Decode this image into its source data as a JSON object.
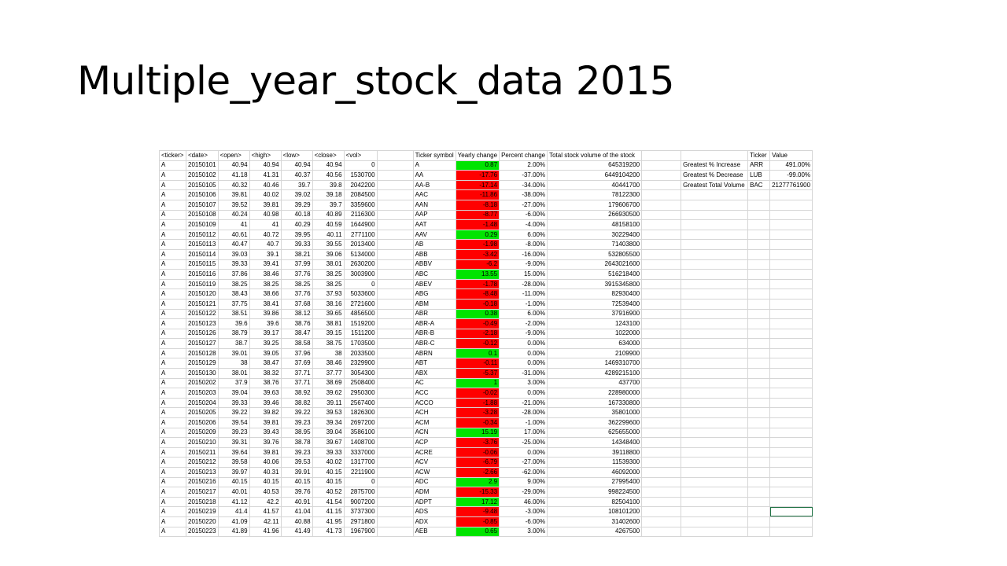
{
  "slide": {
    "title": "Multiple_year_stock_data 2015"
  },
  "sheet": {
    "raw_headers": [
      "<ticker>",
      "<date>",
      "<open>",
      "<high>",
      "<low>",
      "<close>",
      "<vol>"
    ],
    "raw_rows": [
      [
        "A",
        "20150101",
        "40.94",
        "40.94",
        "40.94",
        "40.94",
        "0"
      ],
      [
        "A",
        "20150102",
        "41.18",
        "41.31",
        "40.37",
        "40.56",
        "1530700"
      ],
      [
        "A",
        "20150105",
        "40.32",
        "40.46",
        "39.7",
        "39.8",
        "2042200"
      ],
      [
        "A",
        "20150106",
        "39.81",
        "40.02",
        "39.02",
        "39.18",
        "2084500"
      ],
      [
        "A",
        "20150107",
        "39.52",
        "39.81",
        "39.29",
        "39.7",
        "3359600"
      ],
      [
        "A",
        "20150108",
        "40.24",
        "40.98",
        "40.18",
        "40.89",
        "2116300"
      ],
      [
        "A",
        "20150109",
        "41",
        "41",
        "40.29",
        "40.59",
        "1644900"
      ],
      [
        "A",
        "20150112",
        "40.61",
        "40.72",
        "39.95",
        "40.11",
        "2771100"
      ],
      [
        "A",
        "20150113",
        "40.47",
        "40.7",
        "39.33",
        "39.55",
        "2013400"
      ],
      [
        "A",
        "20150114",
        "39.03",
        "39.1",
        "38.21",
        "39.06",
        "5134000"
      ],
      [
        "A",
        "20150115",
        "39.33",
        "39.41",
        "37.99",
        "38.01",
        "2630200"
      ],
      [
        "A",
        "20150116",
        "37.86",
        "38.46",
        "37.76",
        "38.25",
        "3003900"
      ],
      [
        "A",
        "20150119",
        "38.25",
        "38.25",
        "38.25",
        "38.25",
        "0"
      ],
      [
        "A",
        "20150120",
        "38.43",
        "38.66",
        "37.76",
        "37.93",
        "5033600"
      ],
      [
        "A",
        "20150121",
        "37.75",
        "38.41",
        "37.68",
        "38.16",
        "2721600"
      ],
      [
        "A",
        "20150122",
        "38.51",
        "39.86",
        "38.12",
        "39.65",
        "4856500"
      ],
      [
        "A",
        "20150123",
        "39.6",
        "39.6",
        "38.76",
        "38.81",
        "1519200"
      ],
      [
        "A",
        "20150126",
        "38.79",
        "39.17",
        "38.47",
        "39.15",
        "1511200"
      ],
      [
        "A",
        "20150127",
        "38.7",
        "39.25",
        "38.58",
        "38.75",
        "1703500"
      ],
      [
        "A",
        "20150128",
        "39.01",
        "39.05",
        "37.96",
        "38",
        "2033500"
      ],
      [
        "A",
        "20150129",
        "38",
        "38.47",
        "37.69",
        "38.46",
        "2329900"
      ],
      [
        "A",
        "20150130",
        "38.01",
        "38.32",
        "37.71",
        "37.77",
        "3054300"
      ],
      [
        "A",
        "20150202",
        "37.9",
        "38.76",
        "37.71",
        "38.69",
        "2508400"
      ],
      [
        "A",
        "20150203",
        "39.04",
        "39.63",
        "38.92",
        "39.62",
        "2950300"
      ],
      [
        "A",
        "20150204",
        "39.33",
        "39.46",
        "38.82",
        "39.11",
        "2567400"
      ],
      [
        "A",
        "20150205",
        "39.22",
        "39.82",
        "39.22",
        "39.53",
        "1826300"
      ],
      [
        "A",
        "20150206",
        "39.54",
        "39.81",
        "39.23",
        "39.34",
        "2697200"
      ],
      [
        "A",
        "20150209",
        "39.23",
        "39.43",
        "38.95",
        "39.04",
        "3586100"
      ],
      [
        "A",
        "20150210",
        "39.31",
        "39.76",
        "38.78",
        "39.67",
        "1408700"
      ],
      [
        "A",
        "20150211",
        "39.64",
        "39.81",
        "39.23",
        "39.33",
        "3337000"
      ],
      [
        "A",
        "20150212",
        "39.58",
        "40.06",
        "39.53",
        "40.02",
        "1317700"
      ],
      [
        "A",
        "20150213",
        "39.97",
        "40.31",
        "39.91",
        "40.15",
        "2211900"
      ],
      [
        "A",
        "20150216",
        "40.15",
        "40.15",
        "40.15",
        "40.15",
        "0"
      ],
      [
        "A",
        "20150217",
        "40.01",
        "40.53",
        "39.76",
        "40.52",
        "2875700"
      ],
      [
        "A",
        "20150218",
        "41.12",
        "42.2",
        "40.91",
        "41.54",
        "9007200"
      ],
      [
        "A",
        "20150219",
        "41.4",
        "41.57",
        "41.04",
        "41.15",
        "3737300"
      ],
      [
        "A",
        "20150220",
        "41.09",
        "42.11",
        "40.88",
        "41.95",
        "2971800"
      ],
      [
        "A",
        "20150223",
        "41.89",
        "41.96",
        "41.49",
        "41.73",
        "1967900"
      ]
    ],
    "summary_headers": [
      "Ticker symbol",
      "Yearly change",
      "Percent change",
      "Total stock volume of the stock"
    ],
    "summary_rows": [
      {
        "ticker": "A",
        "change": "0.87",
        "percent": "2.00%",
        "volume": "645319200",
        "sign": "pos"
      },
      {
        "ticker": "AA",
        "change": "-17.76",
        "percent": "-37.00%",
        "volume": "6449104200",
        "sign": "neg"
      },
      {
        "ticker": "AA-B",
        "change": "-17.14",
        "percent": "-34.00%",
        "volume": "40441700",
        "sign": "neg"
      },
      {
        "ticker": "AAC",
        "change": "-11.86",
        "percent": "-38.00%",
        "volume": "78122300",
        "sign": "neg"
      },
      {
        "ticker": "AAN",
        "change": "-8.18",
        "percent": "-27.00%",
        "volume": "179606700",
        "sign": "neg"
      },
      {
        "ticker": "AAP",
        "change": "-8.77",
        "percent": "-6.00%",
        "volume": "266930500",
        "sign": "neg"
      },
      {
        "ticker": "AAT",
        "change": "-1.48",
        "percent": "-4.00%",
        "volume": "48158100",
        "sign": "neg"
      },
      {
        "ticker": "AAV",
        "change": "0.29",
        "percent": "6.00%",
        "volume": "30229400",
        "sign": "pos"
      },
      {
        "ticker": "AB",
        "change": "-1.98",
        "percent": "-8.00%",
        "volume": "71403800",
        "sign": "neg"
      },
      {
        "ticker": "ABB",
        "change": "-3.42",
        "percent": "-16.00%",
        "volume": "532805500",
        "sign": "neg"
      },
      {
        "ticker": "ABBV",
        "change": "-6.2",
        "percent": "-9.00%",
        "volume": "2643021600",
        "sign": "neg"
      },
      {
        "ticker": "ABC",
        "change": "13.55",
        "percent": "15.00%",
        "volume": "516218400",
        "sign": "pos"
      },
      {
        "ticker": "ABEV",
        "change": "-1.78",
        "percent": "-28.00%",
        "volume": "3915345800",
        "sign": "neg"
      },
      {
        "ticker": "ABG",
        "change": "-8.48",
        "percent": "-11.00%",
        "volume": "82930400",
        "sign": "neg"
      },
      {
        "ticker": "ABM",
        "change": "-0.18",
        "percent": "-1.00%",
        "volume": "72539400",
        "sign": "neg"
      },
      {
        "ticker": "ABR",
        "change": "0.38",
        "percent": "6.00%",
        "volume": "37916900",
        "sign": "pos"
      },
      {
        "ticker": "ABR-A",
        "change": "-0.49",
        "percent": "-2.00%",
        "volume": "1243100",
        "sign": "neg"
      },
      {
        "ticker": "ABR-B",
        "change": "-2.18",
        "percent": "-9.00%",
        "volume": "1022000",
        "sign": "neg"
      },
      {
        "ticker": "ABR-C",
        "change": "-0.12",
        "percent": "0.00%",
        "volume": "634000",
        "sign": "neg"
      },
      {
        "ticker": "ABRN",
        "change": "0.1",
        "percent": "0.00%",
        "volume": "2109900",
        "sign": "pos"
      },
      {
        "ticker": "ABT",
        "change": "-0.11",
        "percent": "0.00%",
        "volume": "1469310700",
        "sign": "neg"
      },
      {
        "ticker": "ABX",
        "change": "-5.37",
        "percent": "-31.00%",
        "volume": "4289215100",
        "sign": "neg"
      },
      {
        "ticker": "AC",
        "change": "1",
        "percent": "3.00%",
        "volume": "437700",
        "sign": "pos"
      },
      {
        "ticker": "ACC",
        "change": "-0.02",
        "percent": "0.00%",
        "volume": "228980000",
        "sign": "neg"
      },
      {
        "ticker": "ACCO",
        "change": "-1.88",
        "percent": "-21.00%",
        "volume": "167330800",
        "sign": "neg"
      },
      {
        "ticker": "ACH",
        "change": "-3.28",
        "percent": "-28.00%",
        "volume": "35801000",
        "sign": "neg"
      },
      {
        "ticker": "ACM",
        "change": "-0.34",
        "percent": "-1.00%",
        "volume": "362299600",
        "sign": "neg"
      },
      {
        "ticker": "ACN",
        "change": "15.19",
        "percent": "17.00%",
        "volume": "625655000",
        "sign": "pos"
      },
      {
        "ticker": "ACP",
        "change": "-3.76",
        "percent": "-25.00%",
        "volume": "14348400",
        "sign": "neg"
      },
      {
        "ticker": "ACRE",
        "change": "-0.06",
        "percent": "0.00%",
        "volume": "39118800",
        "sign": "neg"
      },
      {
        "ticker": "ACV",
        "change": "-6.79",
        "percent": "-27.00%",
        "volume": "11539300",
        "sign": "neg"
      },
      {
        "ticker": "ACW",
        "change": "-2.66",
        "percent": "-62.00%",
        "volume": "46092000",
        "sign": "neg"
      },
      {
        "ticker": "ADC",
        "change": "2.9",
        "percent": "9.00%",
        "volume": "27995400",
        "sign": "pos"
      },
      {
        "ticker": "ADM",
        "change": "-15.33",
        "percent": "-29.00%",
        "volume": "998224500",
        "sign": "neg"
      },
      {
        "ticker": "ADPT",
        "change": "17.12",
        "percent": "46.00%",
        "volume": "82504100",
        "sign": "pos"
      },
      {
        "ticker": "ADS",
        "change": "-9.48",
        "percent": "-3.00%",
        "volume": "108101200",
        "sign": "neg"
      },
      {
        "ticker": "ADX",
        "change": "-0.85",
        "percent": "-6.00%",
        "volume": "31402600",
        "sign": "neg"
      },
      {
        "ticker": "AEB",
        "change": "0.65",
        "percent": "3.00%",
        "volume": "4267500",
        "sign": "pos"
      }
    ],
    "greatest_headers": [
      "Ticker",
      "Value"
    ],
    "greatest_rows": [
      {
        "label": "Greatest % Increase",
        "ticker": "ARR",
        "value": "491.00%"
      },
      {
        "label": "Greatest % Decrease",
        "ticker": "LUB",
        "value": "-99.00%"
      },
      {
        "label": "Greatest Total Volume",
        "ticker": "BAC",
        "value": "21277761900"
      }
    ],
    "colors": {
      "positive": "#00e400",
      "negative": "#ff0000",
      "gridline": "#d6d6d6",
      "selection": "#217346"
    }
  }
}
